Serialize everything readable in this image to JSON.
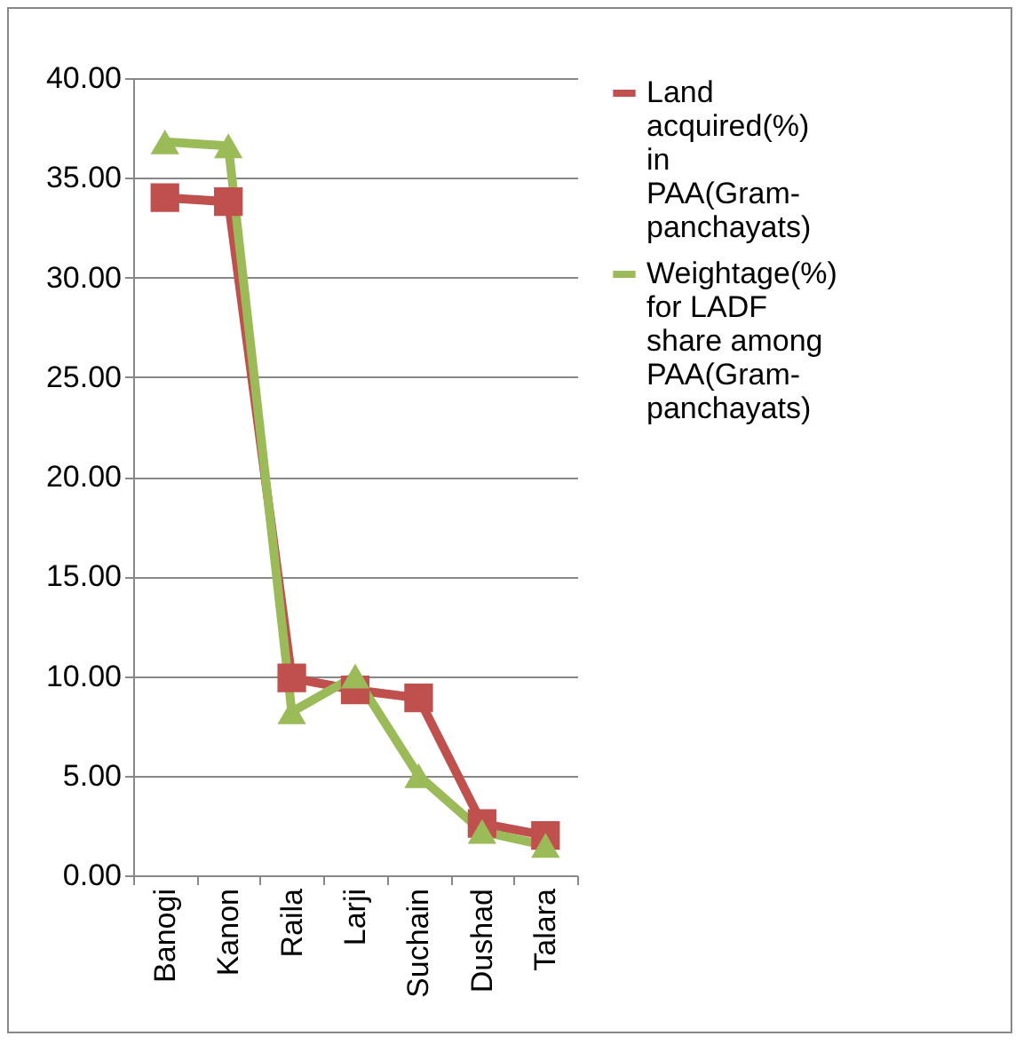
{
  "chart_data": {
    "type": "line",
    "categories": [
      "Banogi",
      "Kanon",
      "Raila",
      "Larji",
      "Suchain",
      "Dushad",
      "Talara"
    ],
    "series": [
      {
        "name": "Land acquired(%) in PAA(Gram-panchayats)",
        "color": "#c0504d",
        "marker": "square",
        "values": [
          34.0,
          33.8,
          9.9,
          9.3,
          8.9,
          2.6,
          2.0
        ]
      },
      {
        "name": "Weightage(%) for LADF share among PAA(Gram-panchayats)",
        "color": "#9bbb59",
        "marker": "triangle",
        "values": [
          36.8,
          36.6,
          8.2,
          10.0,
          5.0,
          2.2,
          1.5
        ]
      }
    ],
    "ylim": [
      0,
      40
    ],
    "yticks": [
      {
        "value": 0,
        "label": "0.00"
      },
      {
        "value": 5,
        "label": "5.00"
      },
      {
        "value": 10,
        "label": "10.00"
      },
      {
        "value": 15,
        "label": "15.00"
      },
      {
        "value": 20,
        "label": "20.00"
      },
      {
        "value": 25,
        "label": "25.00"
      },
      {
        "value": 30,
        "label": "30.00"
      },
      {
        "value": 35,
        "label": "35.00"
      },
      {
        "value": 40,
        "label": "40.00"
      }
    ],
    "grid": "y",
    "legend": "right",
    "line_style": "solid"
  }
}
